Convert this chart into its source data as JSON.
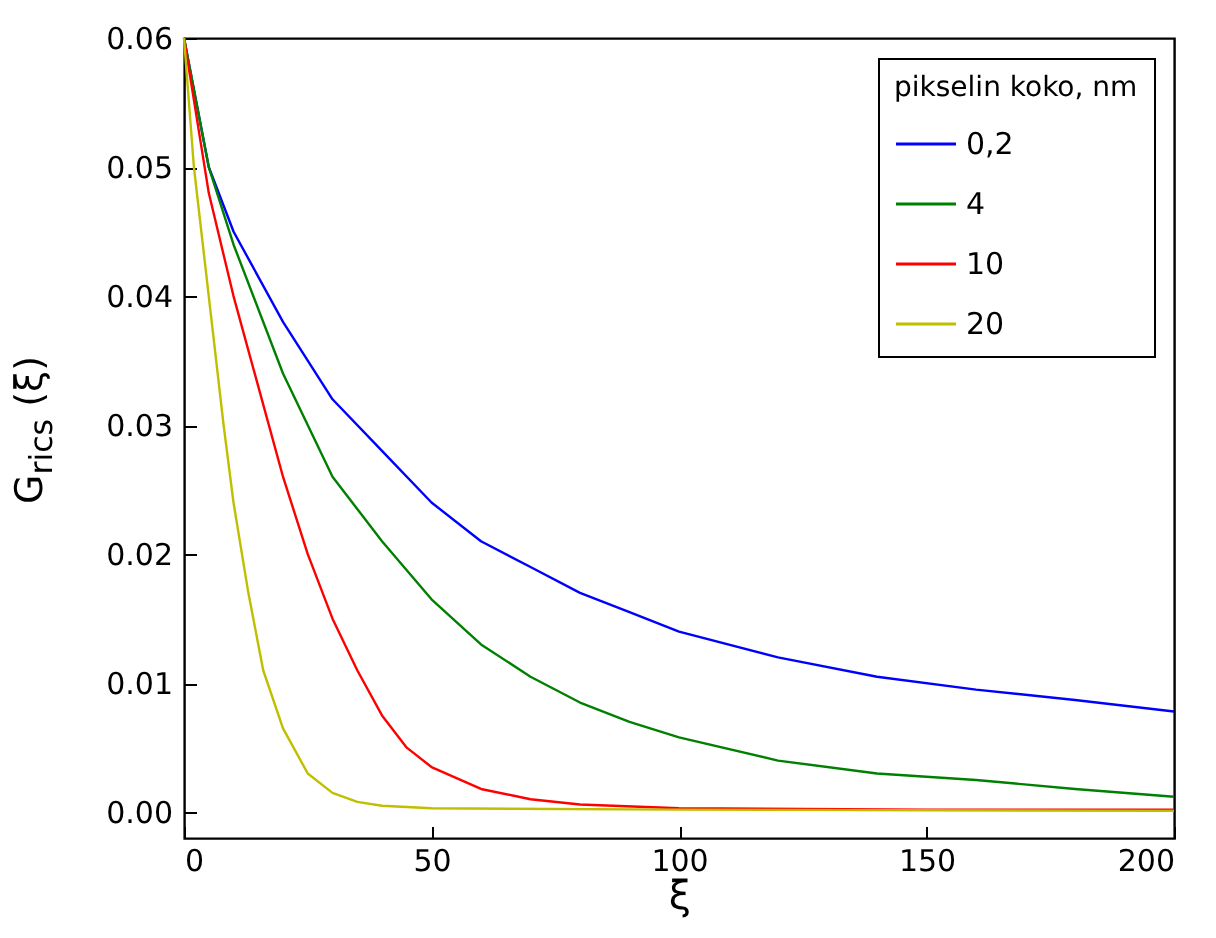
{
  "chart_data": {
    "type": "line",
    "xlabel": "ξ",
    "ylabel": "G$_{rics}$ (ξ)",
    "legend_title": "pikselin koko, nm",
    "legend": "top right",
    "grid": false,
    "xlim": [
      0,
      200
    ],
    "xticks": [
      0,
      50,
      100,
      150,
      200
    ],
    "ylim": [
      -0.002,
      0.06
    ],
    "yticks": [
      {
        "value": 0,
        "label": "0.00"
      },
      {
        "value": 0.01,
        "label": "0.01"
      },
      {
        "value": 0.02,
        "label": "0.02"
      },
      {
        "value": 0.03,
        "label": "0.03"
      },
      {
        "value": 0.04,
        "label": "0.04"
      },
      {
        "value": 0.05,
        "label": "0.05"
      },
      {
        "value": 0.06,
        "label": "0.06"
      }
    ],
    "series": [
      {
        "name": "0,2",
        "color": "#0000ff",
        "x": [
          0,
          5,
          10,
          20,
          30,
          40,
          50,
          60,
          70,
          80,
          90,
          100,
          120,
          140,
          160,
          180,
          200
        ],
        "values": [
          0.06,
          0.05,
          0.045,
          0.038,
          0.032,
          0.028,
          0.024,
          0.021,
          0.019,
          0.017,
          0.0155,
          0.014,
          0.012,
          0.0105,
          0.0095,
          0.0087,
          0.0078
        ]
      },
      {
        "name": "4",
        "color": "#008000",
        "x": [
          0,
          5,
          10,
          20,
          30,
          40,
          50,
          60,
          70,
          80,
          90,
          100,
          120,
          140,
          160,
          180,
          200
        ],
        "values": [
          0.06,
          0.05,
          0.044,
          0.034,
          0.026,
          0.021,
          0.0165,
          0.013,
          0.0105,
          0.0085,
          0.007,
          0.0058,
          0.004,
          0.003,
          0.0025,
          0.0018,
          0.0012
        ]
      },
      {
        "name": "10",
        "color": "#ff0000",
        "x": [
          0,
          5,
          10,
          15,
          20,
          25,
          30,
          35,
          40,
          45,
          50,
          60,
          70,
          80,
          100,
          150,
          200
        ],
        "values": [
          0.06,
          0.048,
          0.04,
          0.033,
          0.026,
          0.02,
          0.015,
          0.011,
          0.0075,
          0.005,
          0.0035,
          0.0018,
          0.001,
          0.0006,
          0.0003,
          0.0002,
          0.0002
        ]
      },
      {
        "name": "20",
        "color": "#bfbf00",
        "x": [
          0,
          2,
          5,
          8,
          10,
          13,
          16,
          20,
          25,
          30,
          35,
          40,
          50,
          100,
          200
        ],
        "values": [
          0.06,
          0.05,
          0.04,
          0.03,
          0.024,
          0.017,
          0.011,
          0.0065,
          0.003,
          0.0015,
          0.0008,
          0.0005,
          0.0003,
          0.0002,
          0.0001
        ]
      }
    ]
  }
}
